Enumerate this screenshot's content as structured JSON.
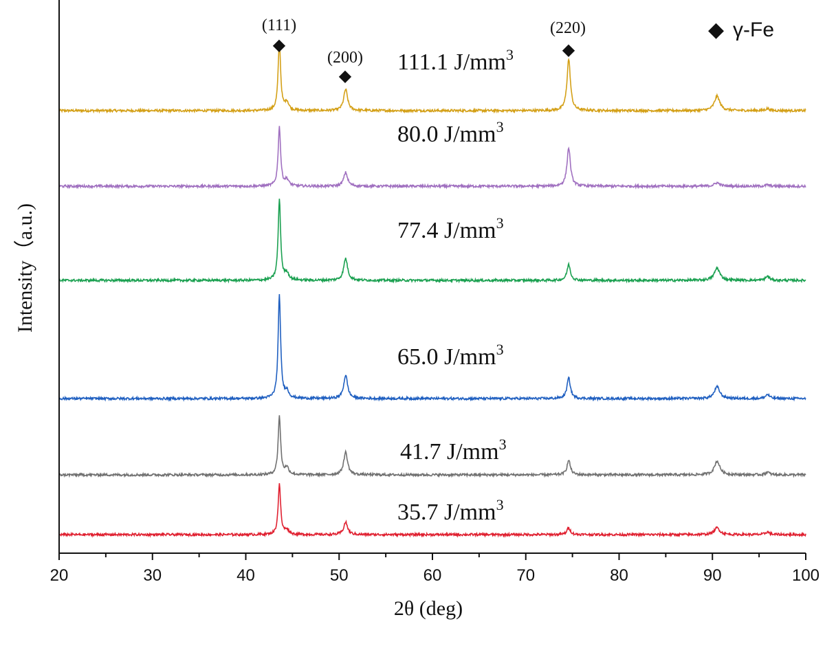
{
  "chart_data": {
    "type": "line",
    "xlabel": "2θ (deg)",
    "ylabel": "Intensity（a.u.)",
    "xlim": [
      20,
      100
    ],
    "x_ticks": [
      "20",
      "30",
      "40",
      "50",
      "60",
      "70",
      "80",
      "90",
      "100"
    ],
    "legend": {
      "marker": "◆",
      "label": "γ-Fe",
      "position": "top-right"
    },
    "y_ticks_shown": false,
    "grid": false,
    "peaks": [
      43.6,
      50.7,
      74.6,
      90.5,
      95.9
    ],
    "peak_annotations": [
      {
        "label": "(111)",
        "x": 43.6,
        "marker": "◆"
      },
      {
        "label": "(200)",
        "x": 50.7,
        "marker": "◆"
      },
      {
        "label": "(220)",
        "x": 74.6,
        "marker": "◆"
      }
    ],
    "series": [
      {
        "name": "111.1 J/mm³",
        "color": "#d4a017",
        "peak_heights": [
          1.0,
          0.31,
          0.75,
          0.21,
          0.03
        ],
        "shoulder": 0.12
      },
      {
        "name": "80.0 J/mm³",
        "color": "#a070c0",
        "peak_heights": [
          0.86,
          0.2,
          0.56,
          0.05,
          0.02
        ],
        "shoulder": 0.09
      },
      {
        "name": "77.4 J/mm³",
        "color": "#1aa050",
        "peak_heights": [
          1.17,
          0.32,
          0.23,
          0.18,
          0.06
        ],
        "shoulder": 0.1
      },
      {
        "name": "65.0 J/mm³",
        "color": "#1f5fc0",
        "peak_heights": [
          1.5,
          0.34,
          0.3,
          0.17,
          0.06
        ],
        "shoulder": 0.1
      },
      {
        "name": "41.7 J/mm³",
        "color": "#707070",
        "peak_heights": [
          0.85,
          0.33,
          0.21,
          0.2,
          0.04
        ],
        "shoulder": 0.1
      },
      {
        "name": "35.7 J/mm³",
        "color": "#e02030",
        "peak_heights": [
          0.73,
          0.18,
          0.1,
          0.1,
          0.04
        ],
        "shoulder": 0.07
      }
    ]
  }
}
